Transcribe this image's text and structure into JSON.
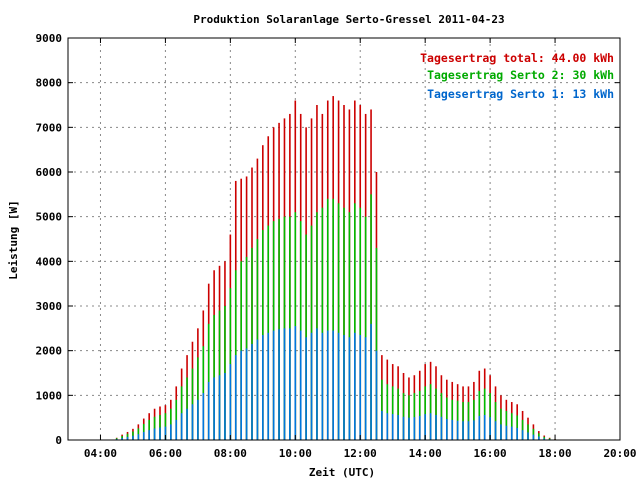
{
  "chart_data": {
    "type": "bar",
    "title": "Produktion Solaranlage Serto-Gressel 2011-04-23",
    "xlabel": "Zeit (UTC)",
    "ylabel": "Leistung [W]",
    "ylim": [
      0,
      9000
    ],
    "yticks": [
      "0",
      "1000",
      "2000",
      "3000",
      "4000",
      "5000",
      "6000",
      "7000",
      "8000",
      "9000"
    ],
    "xticks": [
      "04:00",
      "06:00",
      "08:00",
      "10:00",
      "12:00",
      "14:00",
      "16:00",
      "18:00",
      "20:00"
    ],
    "xlim_hours": [
      3,
      20
    ],
    "grid": true,
    "legend_position": "top-right",
    "legend": [
      {
        "text": "Tagesertrag total: 44.00 kWh",
        "color": "#cc0000"
      },
      {
        "text": "Tagesertrag Serto 2: 30 kWh",
        "color": "#00aa00"
      },
      {
        "text": "Tagesertrag Serto 1: 13 kWh",
        "color": "#0066cc"
      }
    ],
    "series_colors": {
      "total": "#cc0000",
      "serto2": "#00bb00",
      "serto1": "#0077dd"
    },
    "x": [
      "04:30",
      "04:40",
      "04:50",
      "05:00",
      "05:10",
      "05:20",
      "05:30",
      "05:40",
      "05:50",
      "06:00",
      "06:10",
      "06:20",
      "06:30",
      "06:40",
      "06:50",
      "07:00",
      "07:10",
      "07:20",
      "07:30",
      "07:40",
      "07:50",
      "08:00",
      "08:10",
      "08:20",
      "08:30",
      "08:40",
      "08:50",
      "09:00",
      "09:10",
      "09:20",
      "09:30",
      "09:40",
      "09:50",
      "10:00",
      "10:10",
      "10:20",
      "10:30",
      "10:40",
      "10:50",
      "11:00",
      "11:10",
      "11:20",
      "11:30",
      "11:40",
      "11:50",
      "12:00",
      "12:10",
      "12:20",
      "12:30",
      "12:40",
      "12:50",
      "13:00",
      "13:10",
      "13:20",
      "13:30",
      "13:40",
      "13:50",
      "14:00",
      "14:10",
      "14:20",
      "14:30",
      "14:40",
      "14:50",
      "15:00",
      "15:10",
      "15:20",
      "15:30",
      "15:40",
      "15:50",
      "16:00",
      "16:10",
      "16:20",
      "16:30",
      "16:40",
      "16:50",
      "17:00",
      "17:10",
      "17:20",
      "17:30",
      "17:40",
      "17:50",
      "18:00"
    ],
    "series": [
      {
        "name": "total",
        "values": [
          50,
          120,
          180,
          250,
          350,
          480,
          600,
          700,
          750,
          780,
          900,
          1200,
          1600,
          1900,
          2200,
          2500,
          2900,
          3500,
          3800,
          3900,
          4000,
          4600,
          5800,
          5850,
          5900,
          6100,
          6300,
          6600,
          6800,
          7000,
          7100,
          7200,
          7300,
          7600,
          7300,
          7000,
          7200,
          7500,
          7300,
          7600,
          7700,
          7600,
          7500,
          7400,
          7600,
          7500,
          7300,
          7400,
          6000,
          1900,
          1800,
          1700,
          1650,
          1500,
          1400,
          1450,
          1550,
          1700,
          1750,
          1650,
          1450,
          1350,
          1300,
          1250,
          1200,
          1200,
          1300,
          1550,
          1600,
          1450,
          1200,
          1000,
          900,
          850,
          800,
          650,
          500,
          350,
          200,
          100,
          50,
          20
        ]
      },
      {
        "name": "Serto 2",
        "values": [
          40,
          90,
          140,
          190,
          260,
          360,
          450,
          520,
          560,
          600,
          700,
          900,
          1200,
          1400,
          1600,
          1850,
          2100,
          2600,
          2800,
          2900,
          3000,
          3400,
          3800,
          4000,
          4100,
          4300,
          4500,
          4700,
          4800,
          4900,
          4950,
          5000,
          5000,
          5100,
          4900,
          4600,
          4800,
          5100,
          5200,
          5400,
          5400,
          5300,
          5200,
          5100,
          5300,
          5200,
          5000,
          5500,
          4300,
          1350,
          1250,
          1200,
          1150,
          1050,
          1000,
          1050,
          1100,
          1200,
          1250,
          1150,
          1050,
          950,
          900,
          880,
          850,
          850,
          900,
          1100,
          1150,
          1050,
          850,
          700,
          650,
          600,
          550,
          450,
          350,
          250,
          150,
          70,
          35,
          15
        ]
      },
      {
        "name": "Serto 1",
        "values": [
          20,
          45,
          70,
          95,
          130,
          180,
          220,
          260,
          280,
          300,
          350,
          450,
          600,
          700,
          800,
          900,
          1050,
          1300,
          1400,
          1450,
          1500,
          1700,
          1900,
          2000,
          2050,
          2150,
          2250,
          2350,
          2400,
          2450,
          2480,
          2500,
          2500,
          2550,
          2450,
          2300,
          2400,
          2500,
          2400,
          2450,
          2450,
          2400,
          2350,
          2300,
          2400,
          2350,
          2300,
          2600,
          2000,
          650,
          600,
          580,
          560,
          520,
          500,
          510,
          540,
          580,
          600,
          560,
          520,
          470,
          450,
          430,
          420,
          420,
          440,
          540,
          560,
          510,
          420,
          350,
          320,
          300,
          270,
          220,
          170,
          120,
          80,
          35,
          18,
          8
        ]
      }
    ]
  }
}
